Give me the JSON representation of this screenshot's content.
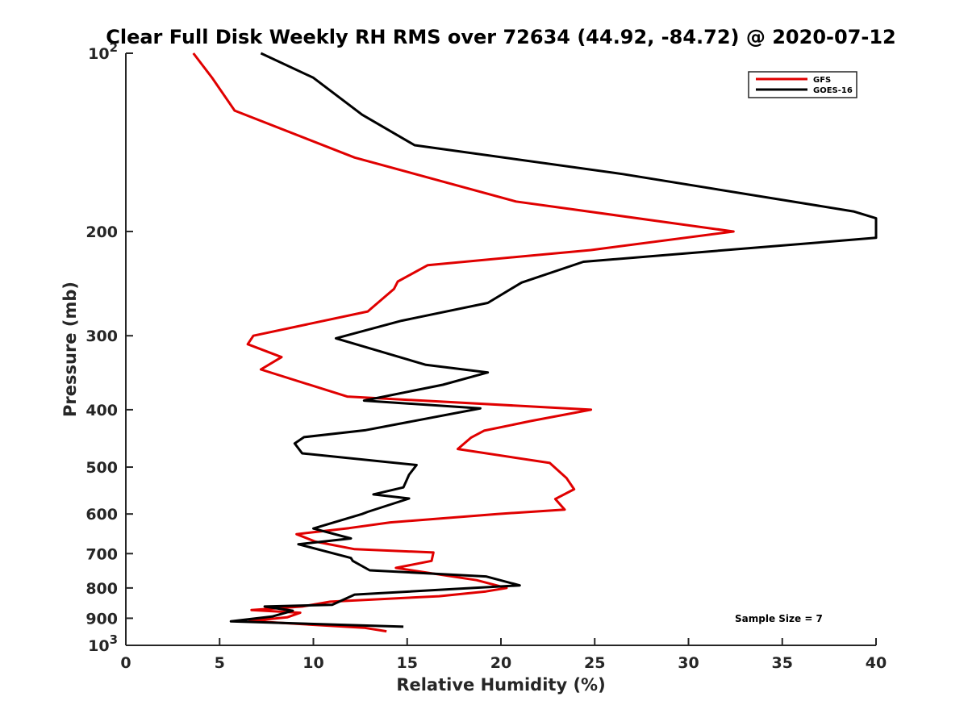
{
  "chart_data": {
    "type": "line",
    "title": "Clear Full Disk Weekly RH RMS over 72634 (44.92, -84.72) @ 2020-07-12",
    "xlabel": "Relative Humidity (%)",
    "ylabel": "Pressure (mb)",
    "xlim": [
      0,
      40
    ],
    "ylim": [
      100,
      1000
    ],
    "yscale": "log",
    "yreversed": true,
    "grid": false,
    "x_ticks": [
      "0",
      "5",
      "10",
      "15",
      "20",
      "25",
      "30",
      "35",
      "40"
    ],
    "y_ticks": [
      {
        "value": 100,
        "base": "10",
        "exp": "2",
        "label": ""
      },
      {
        "value": 200,
        "label": "200"
      },
      {
        "value": 300,
        "label": "300"
      },
      {
        "value": 400,
        "label": "400"
      },
      {
        "value": 500,
        "label": "500"
      },
      {
        "value": 600,
        "label": "600"
      },
      {
        "value": 700,
        "label": "700"
      },
      {
        "value": 800,
        "label": "800"
      },
      {
        "value": 900,
        "label": "900"
      },
      {
        "value": 1000,
        "base": "10",
        "exp": "3",
        "label": ""
      }
    ],
    "legend_position": "top-right",
    "annotation": "Sample Size = 7",
    "series": [
      {
        "name": "GFS",
        "color": "#e00000",
        "x": [
          3.6,
          4.6,
          5.8,
          12.2,
          20.8,
          32.4,
          24.8,
          16.1,
          14.5,
          14.3,
          12.9,
          6.8,
          6.5,
          8.3,
          7.2,
          11.8,
          24.8,
          21.6,
          19.1,
          18.4,
          17.7,
          22.6,
          23.5,
          23.9,
          22.9,
          23.4,
          19.8,
          14.1,
          11.9,
          9.1,
          10.1,
          12.2,
          16.4,
          16.3,
          14.4,
          18.7,
          20.3,
          19.2,
          16.7,
          10.9,
          9.4,
          6.7,
          9.3,
          8.6,
          6.6,
          12.7,
          13.9
        ],
        "y": [
          100,
          110,
          125,
          150,
          178,
          200,
          215,
          228,
          243,
          250,
          273,
          300,
          310,
          326,
          342,
          380,
          400,
          418,
          434,
          446,
          466,
          492,
          522,
          545,
          566,
          590,
          600,
          620,
          634,
          649,
          668,
          688,
          697,
          720,
          740,
          776,
          800,
          811,
          826,
          844,
          860,
          872,
          881,
          897,
          910,
          934,
          947
        ]
      },
      {
        "name": "GOES-16",
        "color": "#000000",
        "x": [
          7.2,
          10.0,
          12.6,
          15.4,
          26.5,
          38.8,
          40.0,
          40.0,
          24.4,
          21.1,
          19.3,
          14.7,
          11.2,
          16.0,
          19.3,
          16.9,
          12.7,
          18.9,
          12.8,
          9.5,
          9.0,
          9.4,
          15.5,
          15.1,
          14.8,
          13.2,
          15.1,
          12.9,
          12.6,
          10.0,
          12.0,
          9.2,
          12.0,
          12.1,
          13.0,
          19.2,
          21.0,
          18.2,
          12.2,
          11.0,
          7.4,
          8.9,
          7.8,
          5.6,
          14.8
        ],
        "y": [
          100,
          110,
          127,
          143,
          160,
          185,
          190,
          205,
          225,
          244,
          264,
          283,
          303,
          336,
          346,
          363,
          386,
          398,
          433,
          445,
          456,
          474,
          496,
          515,
          541,
          556,
          565,
          595,
          600,
          635,
          660,
          675,
          712,
          720,
          747,
          765,
          792,
          801,
          821,
          854,
          860,
          874,
          894,
          911,
          930
        ]
      }
    ]
  }
}
